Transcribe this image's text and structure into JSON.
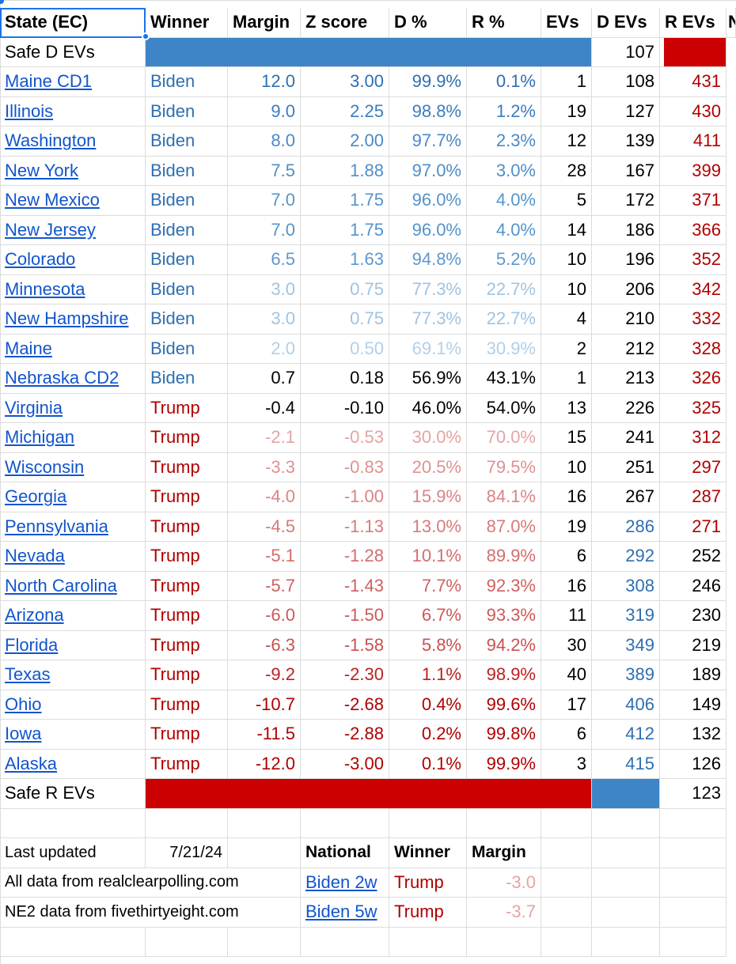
{
  "headers": [
    "State (EC)",
    "Winner",
    "Margin",
    "Z score",
    "D %",
    "R %",
    "EVs",
    "D EVs",
    "R EVs",
    "N"
  ],
  "safe_d": {
    "label": "Safe D EVs",
    "d_evs": "107"
  },
  "states": [
    {
      "state": "Maine CD1",
      "winner": "Biden",
      "margin": "12.0",
      "z": "3.00",
      "d": "99.9%",
      "r": "0.1%",
      "evs": "1",
      "d_evs": "108",
      "r_evs": "431",
      "shade": "#2e6fb0",
      "dev_color": "#000000",
      "rev_color": "#b00000"
    },
    {
      "state": "Illinois",
      "winner": "Biden",
      "margin": "9.0",
      "z": "2.25",
      "d": "98.8%",
      "r": "1.2%",
      "evs": "19",
      "d_evs": "127",
      "r_evs": "430",
      "shade": "#3a7dbf",
      "dev_color": "#000000",
      "rev_color": "#b00000"
    },
    {
      "state": "Washington",
      "winner": "Biden",
      "margin": "8.0",
      "z": "2.00",
      "d": "97.7%",
      "r": "2.3%",
      "evs": "12",
      "d_evs": "139",
      "r_evs": "411",
      "shade": "#4a89c6",
      "dev_color": "#000000",
      "rev_color": "#b00000"
    },
    {
      "state": "New York",
      "winner": "Biden",
      "margin": "7.5",
      "z": "1.88",
      "d": "97.0%",
      "r": "3.0%",
      "evs": "28",
      "d_evs": "167",
      "r_evs": "399",
      "shade": "#4f8dc9",
      "dev_color": "#000000",
      "rev_color": "#b00000"
    },
    {
      "state": "New Mexico",
      "winner": "Biden",
      "margin": "7.0",
      "z": "1.75",
      "d": "96.0%",
      "r": "4.0%",
      "evs": "5",
      "d_evs": "172",
      "r_evs": "371",
      "shade": "#5593cc",
      "dev_color": "#000000",
      "rev_color": "#b00000"
    },
    {
      "state": "New Jersey",
      "winner": "Biden",
      "margin": "7.0",
      "z": "1.75",
      "d": "96.0%",
      "r": "4.0%",
      "evs": "14",
      "d_evs": "186",
      "r_evs": "366",
      "shade": "#5593cc",
      "dev_color": "#000000",
      "rev_color": "#b00000"
    },
    {
      "state": "Colorado",
      "winner": "Biden",
      "margin": "6.5",
      "z": "1.63",
      "d": "94.8%",
      "r": "5.2%",
      "evs": "10",
      "d_evs": "196",
      "r_evs": "352",
      "shade": "#5d98cf",
      "dev_color": "#000000",
      "rev_color": "#b00000"
    },
    {
      "state": "Minnesota",
      "winner": "Biden",
      "margin": "3.0",
      "z": "0.75",
      "d": "77.3%",
      "r": "22.7%",
      "evs": "10",
      "d_evs": "206",
      "r_evs": "342",
      "shade": "#9fc3e3",
      "dev_color": "#000000",
      "rev_color": "#b00000"
    },
    {
      "state": "New Hampshire",
      "winner": "Biden",
      "margin": "3.0",
      "z": "0.75",
      "d": "77.3%",
      "r": "22.7%",
      "evs": "4",
      "d_evs": "210",
      "r_evs": "332",
      "shade": "#9fc3e3",
      "dev_color": "#000000",
      "rev_color": "#b00000"
    },
    {
      "state": "Maine",
      "winner": "Biden",
      "margin": "2.0",
      "z": "0.50",
      "d": "69.1%",
      "r": "30.9%",
      "evs": "2",
      "d_evs": "212",
      "r_evs": "328",
      "shade": "#b1cfe8",
      "dev_color": "#000000",
      "rev_color": "#b00000"
    },
    {
      "state": "Nebraska CD2",
      "winner": "Biden",
      "margin": "0.7",
      "z": "0.18",
      "d": "56.9%",
      "r": "43.1%",
      "evs": "1",
      "d_evs": "213",
      "r_evs": "326",
      "shade": "#000000",
      "dev_color": "#000000",
      "rev_color": "#b00000"
    },
    {
      "state": "Virginia",
      "winner": "Trump",
      "margin": "-0.4",
      "z": "-0.10",
      "d": "46.0%",
      "r": "54.0%",
      "evs": "13",
      "d_evs": "226",
      "r_evs": "325",
      "shade": "#000000",
      "dev_color": "#000000",
      "rev_color": "#b00000"
    },
    {
      "state": "Michigan",
      "winner": "Trump",
      "margin": "-2.1",
      "z": "-0.53",
      "d": "30.0%",
      "r": "70.0%",
      "evs": "15",
      "d_evs": "241",
      "r_evs": "312",
      "shade": "#e6a3a3",
      "dev_color": "#000000",
      "rev_color": "#b00000"
    },
    {
      "state": "Wisconsin",
      "winner": "Trump",
      "margin": "-3.3",
      "z": "-0.83",
      "d": "20.5%",
      "r": "79.5%",
      "evs": "10",
      "d_evs": "251",
      "r_evs": "297",
      "shade": "#e09090",
      "dev_color": "#000000",
      "rev_color": "#b00000"
    },
    {
      "state": "Georgia",
      "winner": "Trump",
      "margin": "-4.0",
      "z": "-1.00",
      "d": "15.9%",
      "r": "84.1%",
      "evs": "16",
      "d_evs": "267",
      "r_evs": "287",
      "shade": "#dc8383",
      "dev_color": "#000000",
      "rev_color": "#b00000"
    },
    {
      "state": "Pennsylvania",
      "winner": "Trump",
      "margin": "-4.5",
      "z": "-1.13",
      "d": "13.0%",
      "r": "87.0%",
      "evs": "19",
      "d_evs": "286",
      "r_evs": "271",
      "shade": "#d97979",
      "dev_color": "#2e6fb0",
      "rev_color": "#b00000"
    },
    {
      "state": "Nevada",
      "winner": "Trump",
      "margin": "-5.1",
      "z": "-1.28",
      "d": "10.1%",
      "r": "89.9%",
      "evs": "6",
      "d_evs": "292",
      "r_evs": "252",
      "shade": "#d56c6c",
      "dev_color": "#2e6fb0",
      "rev_color": "#000000"
    },
    {
      "state": "North Carolina",
      "winner": "Trump",
      "margin": "-5.7",
      "z": "-1.43",
      "d": "7.7%",
      "r": "92.3%",
      "evs": "16",
      "d_evs": "308",
      "r_evs": "246",
      "shade": "#d06060",
      "dev_color": "#2e6fb0",
      "rev_color": "#000000"
    },
    {
      "state": "Arizona",
      "winner": "Trump",
      "margin": "-6.0",
      "z": "-1.50",
      "d": "6.7%",
      "r": "93.3%",
      "evs": "11",
      "d_evs": "319",
      "r_evs": "230",
      "shade": "#cd5858",
      "dev_color": "#2e6fb0",
      "rev_color": "#000000"
    },
    {
      "state": "Florida",
      "winner": "Trump",
      "margin": "-6.3",
      "z": "-1.58",
      "d": "5.8%",
      "r": "94.2%",
      "evs": "30",
      "d_evs": "349",
      "r_evs": "219",
      "shade": "#cb5050",
      "dev_color": "#2e6fb0",
      "rev_color": "#000000"
    },
    {
      "state": "Texas",
      "winner": "Trump",
      "margin": "-9.2",
      "z": "-2.30",
      "d": "1.1%",
      "r": "98.9%",
      "evs": "40",
      "d_evs": "389",
      "r_evs": "189",
      "shade": "#bc2020",
      "dev_color": "#2e6fb0",
      "rev_color": "#000000"
    },
    {
      "state": "Ohio",
      "winner": "Trump",
      "margin": "-10.7",
      "z": "-2.68",
      "d": "0.4%",
      "r": "99.6%",
      "evs": "17",
      "d_evs": "406",
      "r_evs": "149",
      "shade": "#b00000",
      "dev_color": "#2e6fb0",
      "rev_color": "#000000"
    },
    {
      "state": "Iowa",
      "winner": "Trump",
      "margin": "-11.5",
      "z": "-2.88",
      "d": "0.2%",
      "r": "99.8%",
      "evs": "6",
      "d_evs": "412",
      "r_evs": "132",
      "shade": "#b00000",
      "dev_color": "#2e6fb0",
      "rev_color": "#000000"
    },
    {
      "state": "Alaska",
      "winner": "Trump",
      "margin": "-12.0",
      "z": "-3.00",
      "d": "0.1%",
      "r": "99.9%",
      "evs": "3",
      "d_evs": "415",
      "r_evs": "126",
      "shade": "#b00000",
      "dev_color": "#2e6fb0",
      "rev_color": "#000000"
    }
  ],
  "safe_r": {
    "label": "Safe R EVs",
    "r_evs": "123"
  },
  "footer": {
    "last_updated_label": "Last updated",
    "last_updated_value": "7/21/24",
    "national_header": "National",
    "winner_header": "Winner",
    "margin_header": "Margin",
    "source1": "All data from realclearpolling.com",
    "source2": "NE2 data from fivethirtyeight.com",
    "national_rows": [
      {
        "link": "Biden 2w",
        "winner": "Trump",
        "margin": "-3.0"
      },
      {
        "link": "Biden 5w",
        "winner": "Trump",
        "margin": "-3.7"
      }
    ]
  },
  "colors": {
    "biden": "#2e6fb0",
    "trump": "#b00000",
    "safe_blue": "#3d85c6",
    "safe_red": "#cc0000",
    "national_margin": "#e6a3a3"
  }
}
